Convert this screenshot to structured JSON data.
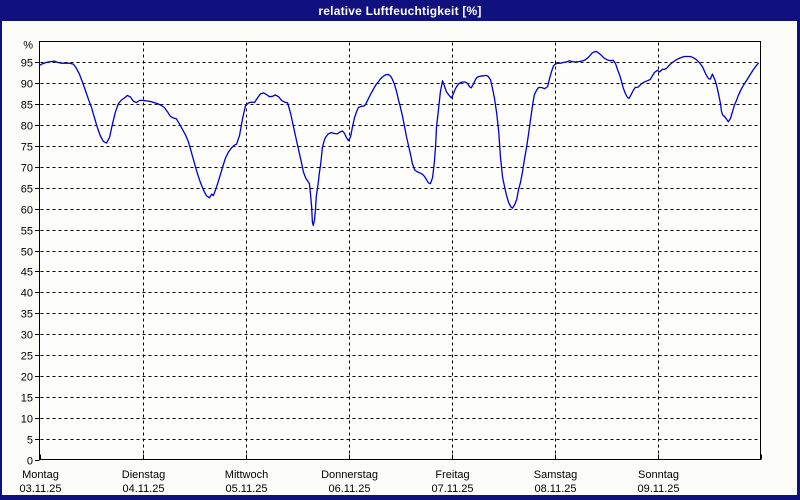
{
  "window": {
    "title": "relative Luftfeuchtigkeit [%]"
  },
  "colors": {
    "titlebar_bg": "#10107E",
    "titlebar_text": "#FFFFFF",
    "window_bg": "#FCFCF8",
    "plot_bg": "#FDFDFB",
    "plot_border": "#000000",
    "grid": "#000000",
    "text": "#000000",
    "line": "#0000CC"
  },
  "chart_data": {
    "type": "line",
    "title": "relative Luftfeuchtigkeit [%]",
    "ylabel": "%",
    "ylim": [
      0,
      100
    ],
    "y_ticks": [
      0,
      5,
      10,
      15,
      20,
      25,
      30,
      35,
      40,
      45,
      50,
      55,
      60,
      65,
      70,
      75,
      80,
      85,
      90,
      95
    ],
    "grid": "dashed",
    "legend": "none",
    "x_axis": {
      "unit": "hours since Monday 00:00",
      "range_hours": [
        0,
        168
      ],
      "days": [
        {
          "label": "Montag",
          "date": "03.11.25"
        },
        {
          "label": "Dienstag",
          "date": "04.11.25"
        },
        {
          "label": "Mittwoch",
          "date": "05.11.25"
        },
        {
          "label": "Donnerstag",
          "date": "06.11.25"
        },
        {
          "label": "Freitag",
          "date": "07.11.25"
        },
        {
          "label": "Samstag",
          "date": "08.11.25"
        },
        {
          "label": "Sonntag",
          "date": "09.11.25"
        }
      ]
    },
    "series": [
      {
        "name": "relative Luftfeuchtigkeit",
        "unit": "%",
        "color": "#0000CC",
        "points_hour_value": [
          [
            0.0,
            94.3
          ],
          [
            0.7,
            94.7
          ],
          [
            1.6,
            95.0
          ],
          [
            2.6,
            95.2
          ],
          [
            3.5,
            95.3
          ],
          [
            4.2,
            95.0
          ],
          [
            5.1,
            94.8
          ],
          [
            6.1,
            94.8
          ],
          [
            7.0,
            94.8
          ],
          [
            7.9,
            94.6
          ],
          [
            8.6,
            93.6
          ],
          [
            9.3,
            92.2
          ],
          [
            10.0,
            90.3
          ],
          [
            10.7,
            88.3
          ],
          [
            11.4,
            86.2
          ],
          [
            12.1,
            84.3
          ],
          [
            12.8,
            81.8
          ],
          [
            13.5,
            79.4
          ],
          [
            14.2,
            77.4
          ],
          [
            14.9,
            76.1
          ],
          [
            15.6,
            75.7
          ],
          [
            16.3,
            77.0
          ],
          [
            17.0,
            80.3
          ],
          [
            17.7,
            83.2
          ],
          [
            18.4,
            85.2
          ],
          [
            19.1,
            86.0
          ],
          [
            19.8,
            86.5
          ],
          [
            20.5,
            87.1
          ],
          [
            21.2,
            86.7
          ],
          [
            21.9,
            85.7
          ],
          [
            22.6,
            85.4
          ],
          [
            23.3,
            85.9
          ],
          [
            24.0,
            85.9
          ],
          [
            24.9,
            85.8
          ],
          [
            26.1,
            85.6
          ],
          [
            27.3,
            85.2
          ],
          [
            28.2,
            84.8
          ],
          [
            29.1,
            84.2
          ],
          [
            29.8,
            83.2
          ],
          [
            30.5,
            82.1
          ],
          [
            31.2,
            81.7
          ],
          [
            31.9,
            81.5
          ],
          [
            32.6,
            80.3
          ],
          [
            33.3,
            79.0
          ],
          [
            34.0,
            77.7
          ],
          [
            34.7,
            76.0
          ],
          [
            35.4,
            73.5
          ],
          [
            36.1,
            70.9
          ],
          [
            36.8,
            68.4
          ],
          [
            37.5,
            66.3
          ],
          [
            38.2,
            64.5
          ],
          [
            38.9,
            63.1
          ],
          [
            39.6,
            62.6
          ],
          [
            40.1,
            63.5
          ],
          [
            40.5,
            63.1
          ],
          [
            41.2,
            65.0
          ],
          [
            41.9,
            67.3
          ],
          [
            42.6,
            69.7
          ],
          [
            43.3,
            72.0
          ],
          [
            44.0,
            73.5
          ],
          [
            44.7,
            74.5
          ],
          [
            45.4,
            75.2
          ],
          [
            45.9,
            75.4
          ],
          [
            46.6,
            77.5
          ],
          [
            47.3,
            81.5
          ],
          [
            48.0,
            84.6
          ],
          [
            48.7,
            85.3
          ],
          [
            49.4,
            85.5
          ],
          [
            50.1,
            85.4
          ],
          [
            50.8,
            86.5
          ],
          [
            51.5,
            87.5
          ],
          [
            52.2,
            87.7
          ],
          [
            52.9,
            87.3
          ],
          [
            53.6,
            86.8
          ],
          [
            54.3,
            86.9
          ],
          [
            55.0,
            87.2
          ],
          [
            55.7,
            86.8
          ],
          [
            56.4,
            85.9
          ],
          [
            57.1,
            85.5
          ],
          [
            57.8,
            85.3
          ],
          [
            58.5,
            82.8
          ],
          [
            59.2,
            79.5
          ],
          [
            59.9,
            76.2
          ],
          [
            60.6,
            73.0
          ],
          [
            61.1,
            70.8
          ],
          [
            61.5,
            68.8
          ],
          [
            62.0,
            67.4
          ],
          [
            62.5,
            66.6
          ],
          [
            62.9,
            66.0
          ],
          [
            63.1,
            64.0
          ],
          [
            63.4,
            60.5
          ],
          [
            63.6,
            56.8
          ],
          [
            63.8,
            56.0
          ],
          [
            64.1,
            57.5
          ],
          [
            64.3,
            60.0
          ],
          [
            64.5,
            63.0
          ],
          [
            64.8,
            65.1
          ],
          [
            65.0,
            66.7
          ],
          [
            65.2,
            68.5
          ],
          [
            65.5,
            70.5
          ],
          [
            65.7,
            72.5
          ],
          [
            65.9,
            74.5
          ],
          [
            66.2,
            75.8
          ],
          [
            66.6,
            77.0
          ],
          [
            67.3,
            77.9
          ],
          [
            68.0,
            78.2
          ],
          [
            68.7,
            78.0
          ],
          [
            69.4,
            77.9
          ],
          [
            70.1,
            78.4
          ],
          [
            70.6,
            78.6
          ],
          [
            71.1,
            78.0
          ],
          [
            71.5,
            77.0
          ],
          [
            72.0,
            76.3
          ],
          [
            72.5,
            77.2
          ],
          [
            72.9,
            79.5
          ],
          [
            73.4,
            81.8
          ],
          [
            73.9,
            83.3
          ],
          [
            74.3,
            84.2
          ],
          [
            75.0,
            84.5
          ],
          [
            75.7,
            84.6
          ],
          [
            76.1,
            85.2
          ],
          [
            76.6,
            86.2
          ],
          [
            77.1,
            87.3
          ],
          [
            77.6,
            88.2
          ],
          [
            78.0,
            89.0
          ],
          [
            78.5,
            89.8
          ],
          [
            79.0,
            90.4
          ],
          [
            79.4,
            91.0
          ],
          [
            79.9,
            91.5
          ],
          [
            80.4,
            91.9
          ],
          [
            80.9,
            92.1
          ],
          [
            81.3,
            92.1
          ],
          [
            81.8,
            91.7
          ],
          [
            82.2,
            91.0
          ],
          [
            82.7,
            89.8
          ],
          [
            83.2,
            88.0
          ],
          [
            83.6,
            86.2
          ],
          [
            84.1,
            84.3
          ],
          [
            84.6,
            82.0
          ],
          [
            85.1,
            79.5
          ],
          [
            85.5,
            77.3
          ],
          [
            86.0,
            75.0
          ],
          [
            86.5,
            72.8
          ],
          [
            86.9,
            70.8
          ],
          [
            87.4,
            69.3
          ],
          [
            87.9,
            68.9
          ],
          [
            88.6,
            68.6
          ],
          [
            89.3,
            68.2
          ],
          [
            89.7,
            67.7
          ],
          [
            90.2,
            66.9
          ],
          [
            90.6,
            66.2
          ],
          [
            91.1,
            66.0
          ],
          [
            91.6,
            67.5
          ],
          [
            92.0,
            71.0
          ],
          [
            92.3,
            75.0
          ],
          [
            92.5,
            79.5
          ],
          [
            93.0,
            84.0
          ],
          [
            93.4,
            87.8
          ],
          [
            93.9,
            90.6
          ],
          [
            94.4,
            89.2
          ],
          [
            94.8,
            88.0
          ],
          [
            95.5,
            87.0
          ],
          [
            96.0,
            86.5
          ],
          [
            96.5,
            87.6
          ],
          [
            96.9,
            88.7
          ],
          [
            97.4,
            89.5
          ],
          [
            97.8,
            90.0
          ],
          [
            98.5,
            90.3
          ],
          [
            99.2,
            90.3
          ],
          [
            99.7,
            90.0
          ],
          [
            100.2,
            89.2
          ],
          [
            100.6,
            88.9
          ],
          [
            101.1,
            89.8
          ],
          [
            101.6,
            90.9
          ],
          [
            102.0,
            91.5
          ],
          [
            102.7,
            91.7
          ],
          [
            103.4,
            91.8
          ],
          [
            104.1,
            91.9
          ],
          [
            104.6,
            91.6
          ],
          [
            105.1,
            90.8
          ],
          [
            105.5,
            89.0
          ],
          [
            106.0,
            86.5
          ],
          [
            106.5,
            83.0
          ],
          [
            107.0,
            78.5
          ],
          [
            107.4,
            72.5
          ],
          [
            107.9,
            67.5
          ],
          [
            108.4,
            65.1
          ],
          [
            108.8,
            63.3
          ],
          [
            109.3,
            61.5
          ],
          [
            109.8,
            60.5
          ],
          [
            110.2,
            60.1
          ],
          [
            110.7,
            60.9
          ],
          [
            111.2,
            62.2
          ],
          [
            111.6,
            64.4
          ],
          [
            112.1,
            66.4
          ],
          [
            112.6,
            69.1
          ],
          [
            113.0,
            71.9
          ],
          [
            113.5,
            74.7
          ],
          [
            114.0,
            78.3
          ],
          [
            114.4,
            81.3
          ],
          [
            114.9,
            84.8
          ],
          [
            115.3,
            87.2
          ],
          [
            115.8,
            88.3
          ],
          [
            116.3,
            89.0
          ],
          [
            117.0,
            89.0
          ],
          [
            117.7,
            88.7
          ],
          [
            118.4,
            89.2
          ],
          [
            118.8,
            91.0
          ],
          [
            119.3,
            92.8
          ],
          [
            119.8,
            94.2
          ],
          [
            120.2,
            94.6
          ],
          [
            120.7,
            94.8
          ],
          [
            121.4,
            94.8
          ],
          [
            122.1,
            95.0
          ],
          [
            122.8,
            95.1
          ],
          [
            123.5,
            95.4
          ],
          [
            124.2,
            95.2
          ],
          [
            124.9,
            95.1
          ],
          [
            125.6,
            95.2
          ],
          [
            126.3,
            95.3
          ],
          [
            127.0,
            95.5
          ],
          [
            127.7,
            96.0
          ],
          [
            128.4,
            96.8
          ],
          [
            128.8,
            97.3
          ],
          [
            129.3,
            97.5
          ],
          [
            129.8,
            97.6
          ],
          [
            130.2,
            97.3
          ],
          [
            130.9,
            96.7
          ],
          [
            131.6,
            96.0
          ],
          [
            132.3,
            95.6
          ],
          [
            133.0,
            95.4
          ],
          [
            133.7,
            95.5
          ],
          [
            134.2,
            94.8
          ],
          [
            134.6,
            93.5
          ],
          [
            135.1,
            92.2
          ],
          [
            135.6,
            90.6
          ],
          [
            136.0,
            88.9
          ],
          [
            136.5,
            87.6
          ],
          [
            137.0,
            86.6
          ],
          [
            137.4,
            86.4
          ],
          [
            137.9,
            87.4
          ],
          [
            138.4,
            88.4
          ],
          [
            138.8,
            89.0
          ],
          [
            139.5,
            89.1
          ],
          [
            140.2,
            89.8
          ],
          [
            140.9,
            90.3
          ],
          [
            141.6,
            90.6
          ],
          [
            142.3,
            90.9
          ],
          [
            142.8,
            91.8
          ],
          [
            143.3,
            92.6
          ],
          [
            144.0,
            93.1
          ],
          [
            144.5,
            92.7
          ],
          [
            145.2,
            93.4
          ],
          [
            145.6,
            93.3
          ],
          [
            146.1,
            93.6
          ],
          [
            146.8,
            94.4
          ],
          [
            147.5,
            95.0
          ],
          [
            148.2,
            95.5
          ],
          [
            148.9,
            95.9
          ],
          [
            149.6,
            96.2
          ],
          [
            150.3,
            96.4
          ],
          [
            151.0,
            96.4
          ],
          [
            151.7,
            96.4
          ],
          [
            152.4,
            96.1
          ],
          [
            153.1,
            95.6
          ],
          [
            153.8,
            94.9
          ],
          [
            154.5,
            93.9
          ],
          [
            154.9,
            93.0
          ],
          [
            155.4,
            91.9
          ],
          [
            155.9,
            91.1
          ],
          [
            156.3,
            91.0
          ],
          [
            156.8,
            92.2
          ],
          [
            157.3,
            91.0
          ],
          [
            157.7,
            89.8
          ],
          [
            158.2,
            87.6
          ],
          [
            158.7,
            85.0
          ],
          [
            158.9,
            83.4
          ],
          [
            159.2,
            82.4
          ],
          [
            159.6,
            82.1
          ],
          [
            160.1,
            81.4
          ],
          [
            160.5,
            80.8
          ],
          [
            161.0,
            81.6
          ],
          [
            161.5,
            83.3
          ],
          [
            161.9,
            84.7
          ],
          [
            162.4,
            85.9
          ],
          [
            162.8,
            87.0
          ],
          [
            163.5,
            88.6
          ],
          [
            164.2,
            89.8
          ],
          [
            164.9,
            90.9
          ],
          [
            165.6,
            92.1
          ],
          [
            166.3,
            93.2
          ],
          [
            167.0,
            94.2
          ],
          [
            167.5,
            94.8
          ]
        ]
      }
    ]
  }
}
